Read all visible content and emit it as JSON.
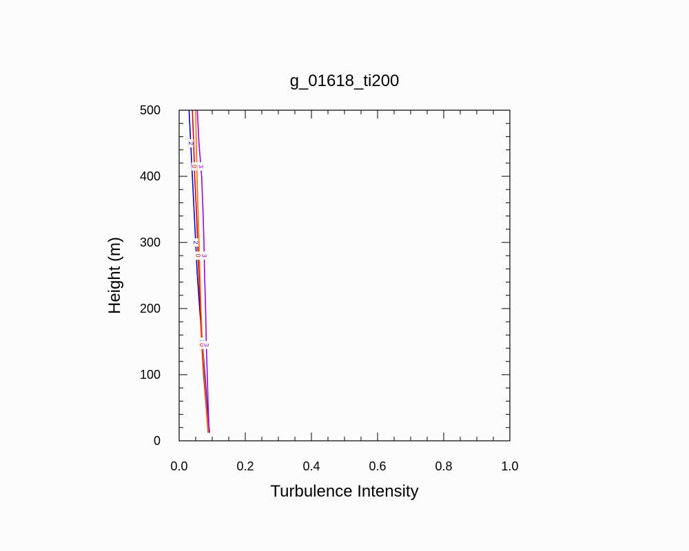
{
  "chart_data": {
    "type": "line",
    "title": "g_01618_ti200",
    "xlabel": "Turbulence Intensity",
    "ylabel": "Height (m)",
    "xlim": [
      0.0,
      1.0
    ],
    "ylim": [
      0,
      500
    ],
    "x_ticks": [
      "0.0",
      "0.2",
      "0.4",
      "0.6",
      "0.8",
      "1.0"
    ],
    "y_ticks": [
      "0",
      "100",
      "200",
      "300",
      "400",
      "500"
    ],
    "grid": false,
    "legend": "none",
    "series": [
      {
        "label": "2",
        "color": "#0000cc",
        "points": [
          [
            0.03,
            500
          ],
          [
            0.035,
            450
          ],
          [
            0.04,
            400
          ],
          [
            0.045,
            350
          ],
          [
            0.05,
            300
          ],
          [
            0.055,
            250
          ],
          [
            0.062,
            200
          ],
          [
            0.07,
            150
          ],
          [
            0.078,
            100
          ],
          [
            0.085,
            50
          ],
          [
            0.092,
            12
          ]
        ],
        "inline_labels_at": [
          450,
          300,
          150
        ]
      },
      {
        "label": "0",
        "color": "#cc0000",
        "points": [
          [
            0.04,
            500
          ],
          [
            0.044,
            450
          ],
          [
            0.047,
            400
          ],
          [
            0.052,
            350
          ],
          [
            0.056,
            300
          ],
          [
            0.06,
            250
          ],
          [
            0.064,
            200
          ],
          [
            0.068,
            150
          ],
          [
            0.074,
            100
          ],
          [
            0.082,
            50
          ],
          [
            0.088,
            12
          ]
        ],
        "inline_labels_at": [
          415,
          280,
          145
        ]
      },
      {
        "label": "3",
        "color": "#9900ee",
        "points": [
          [
            0.055,
            500
          ],
          [
            0.06,
            450
          ],
          [
            0.068,
            400
          ],
          [
            0.072,
            350
          ],
          [
            0.075,
            300
          ],
          [
            0.077,
            250
          ],
          [
            0.08,
            200
          ],
          [
            0.082,
            150
          ],
          [
            0.085,
            100
          ],
          [
            0.088,
            50
          ],
          [
            0.091,
            12
          ]
        ],
        "inline_labels_at": [
          415,
          280,
          145
        ]
      },
      {
        "label": "",
        "color": "#ff6600",
        "points": [
          [
            0.05,
            500
          ],
          [
            0.052,
            450
          ],
          [
            0.054,
            400
          ],
          [
            0.057,
            350
          ],
          [
            0.06,
            300
          ],
          [
            0.063,
            250
          ],
          [
            0.066,
            200
          ],
          [
            0.07,
            150
          ],
          [
            0.076,
            100
          ],
          [
            0.083,
            50
          ],
          [
            0.089,
            12
          ]
        ],
        "inline_labels_at": []
      }
    ]
  }
}
